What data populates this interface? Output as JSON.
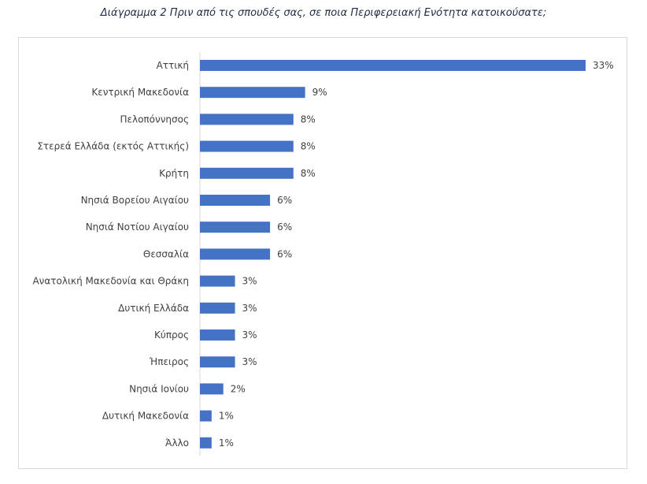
{
  "chart_data": {
    "type": "bar",
    "orientation": "horizontal",
    "title": "Διάγραμμα 2 Πριν από τις σπουδές σας, σε ποια Περιφερειακή Ενότητα κατοικούσατε;",
    "categories": [
      "Αττική",
      "Κεντρική Μακεδονία",
      "Πελοπόννησος",
      "Στερεά Ελλάδα (εκτός Αττικής)",
      "Κρήτη",
      "Νησιά Βορείου Αιγαίου",
      "Νησιά Νοτίου Αιγαίου",
      "Θεσσαλία",
      "Ανατολική Μακεδονία και Θράκη",
      "Δυτική Ελλάδα",
      "Κύπρος",
      "Ήπειρος",
      "Νησιά Ιονίου",
      "Δυτική Μακεδονία",
      "Άλλο"
    ],
    "values": [
      33,
      9,
      8,
      8,
      8,
      6,
      6,
      6,
      3,
      3,
      3,
      3,
      2,
      1,
      1
    ],
    "value_labels": [
      "33%",
      "9%",
      "8%",
      "8%",
      "8%",
      "6%",
      "6%",
      "6%",
      "3%",
      "3%",
      "3%",
      "3%",
      "2%",
      "1%",
      "1%"
    ],
    "bar_color": "#4472c4",
    "grid": false,
    "legend": "none"
  }
}
